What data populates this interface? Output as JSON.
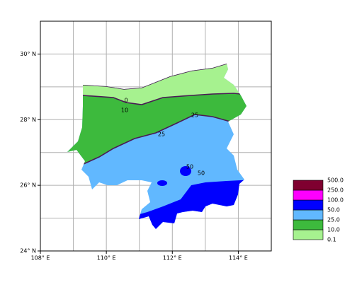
{
  "chart_data": {
    "type": "contour-map",
    "xlim": [
      108,
      115
    ],
    "ylim": [
      24,
      31
    ],
    "xticks": [
      {
        "value": 108,
        "label": "108° E"
      },
      {
        "value": 110,
        "label": "110° E"
      },
      {
        "value": 112,
        "label": "112° E"
      },
      {
        "value": 114,
        "label": "114° E"
      }
    ],
    "yticks": [
      {
        "value": 24,
        "label": "24° N"
      },
      {
        "value": 26,
        "label": "26° N"
      },
      {
        "value": 28,
        "label": "28° N"
      },
      {
        "value": 30,
        "label": "30° N"
      }
    ],
    "xgrid": [
      109,
      111,
      113,
      115
    ],
    "ygrid": [
      25,
      27,
      29,
      31
    ],
    "grid": true,
    "levels": [
      {
        "value": 0.1,
        "label": "0.1"
      },
      {
        "value": 10,
        "label": "10.0"
      },
      {
        "value": 25,
        "label": "25.0"
      },
      {
        "value": 50,
        "label": "50.0"
      },
      {
        "value": 100,
        "label": "100.0"
      },
      {
        "value": 250,
        "label": "250.0"
      },
      {
        "value": 500,
        "label": "500.0"
      }
    ],
    "colors": [
      "#a6f28f",
      "#3dba3d",
      "#61b8ff",
      "#0000fe",
      "#fe00fe",
      "#7f0030"
    ],
    "contour_labels": [
      "0",
      "10",
      "25",
      "25",
      "50",
      "50"
    ]
  }
}
